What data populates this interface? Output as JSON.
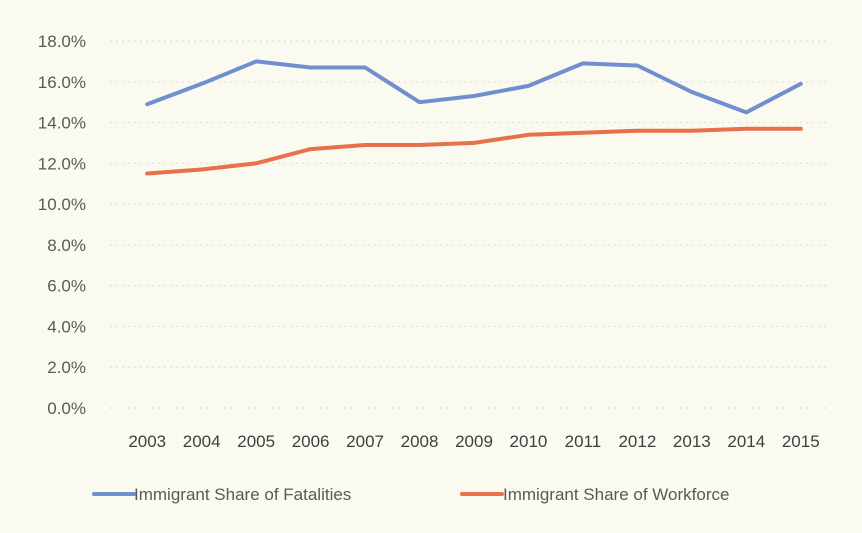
{
  "chart_data": {
    "type": "line",
    "title": "",
    "xlabel": "",
    "ylabel": "",
    "categories": [
      "2003",
      "2004",
      "2005",
      "2006",
      "2007",
      "2008",
      "2009",
      "2010",
      "2011",
      "2012",
      "2013",
      "2014",
      "2015"
    ],
    "ylim": [
      0,
      18
    ],
    "yticks": [
      0,
      2,
      4,
      6,
      8,
      10,
      12,
      14,
      16,
      18
    ],
    "ytick_labels": [
      "0.0%",
      "2.0%",
      "4.0%",
      "6.0%",
      "8.0%",
      "10.0%",
      "12.0%",
      "14.0%",
      "16.0%",
      "18.0%"
    ],
    "grid": true,
    "legend_position": "bottom",
    "series": [
      {
        "name": "Immigrant Share of Fatalities",
        "color": "#6f8fcf",
        "values": [
          14.9,
          15.9,
          17.0,
          16.7,
          16.7,
          15.0,
          15.3,
          15.8,
          16.9,
          16.8,
          15.5,
          14.5,
          15.9
        ]
      },
      {
        "name": "Immigrant Share of Workforce",
        "color": "#e8704a",
        "values": [
          11.5,
          11.7,
          12.0,
          12.7,
          12.9,
          12.9,
          13.0,
          13.4,
          13.5,
          13.6,
          13.6,
          13.7,
          13.7
        ]
      }
    ]
  }
}
